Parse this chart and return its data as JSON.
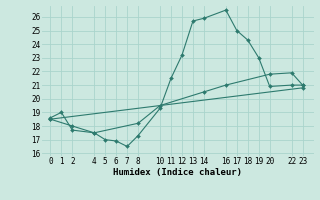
{
  "title": "",
  "xlabel": "Humidex (Indice chaleur)",
  "bg_color": "#cce8e0",
  "grid_color": "#aad4cc",
  "line_color": "#2d7a6e",
  "ylim_min": 15.8,
  "ylim_max": 26.8,
  "xlim_min": -0.8,
  "xlim_max": 24.0,
  "yticks": [
    16,
    17,
    18,
    19,
    20,
    21,
    22,
    23,
    24,
    25,
    26
  ],
  "xticks": [
    0,
    1,
    2,
    4,
    5,
    6,
    7,
    8,
    10,
    11,
    12,
    13,
    14,
    16,
    17,
    18,
    19,
    20,
    22,
    23
  ],
  "line1_x": [
    0,
    1,
    2,
    4,
    5,
    6,
    7,
    8,
    10,
    11,
    12,
    13,
    14,
    16,
    17,
    18,
    19,
    20,
    22,
    23
  ],
  "line1_y": [
    18.6,
    19.0,
    17.7,
    17.5,
    17.0,
    16.9,
    16.5,
    17.3,
    19.3,
    21.5,
    23.2,
    25.7,
    25.9,
    26.5,
    25.0,
    24.3,
    23.0,
    20.9,
    21.0,
    21.0
  ],
  "line2_x": [
    0,
    2,
    4,
    8,
    10,
    14,
    16,
    20,
    22,
    23
  ],
  "line2_y": [
    18.5,
    18.0,
    17.5,
    18.2,
    19.5,
    20.5,
    21.0,
    21.8,
    21.9,
    21.0
  ],
  "line3_x": [
    0,
    23
  ],
  "line3_y": [
    18.5,
    20.8
  ],
  "tick_fontsize": 5.5,
  "xlabel_fontsize": 6.5,
  "linewidth": 0.8,
  "markersize": 2.0
}
